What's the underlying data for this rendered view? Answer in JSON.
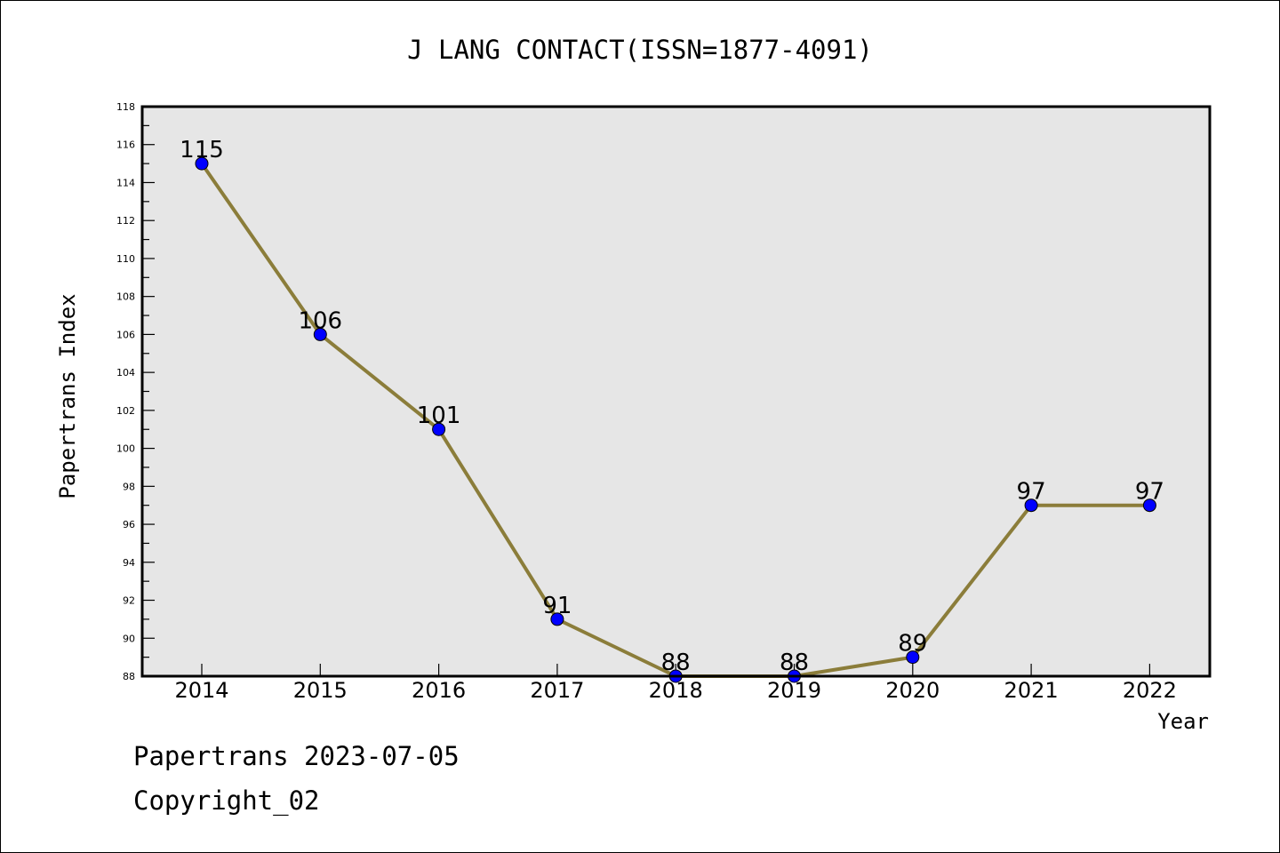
{
  "chart_data": {
    "type": "line",
    "title": "J LANG CONTACT(ISSN=1877-4091)",
    "xlabel": "Year",
    "ylabel": "Papertrans Index",
    "x": [
      "2014",
      "2015",
      "2016",
      "2017",
      "2018",
      "2019",
      "2020",
      "2021",
      "2022"
    ],
    "values": [
      115,
      106,
      101,
      91,
      88,
      88,
      89,
      97,
      97
    ],
    "data_labels": [
      "115",
      "106",
      "101",
      "91",
      "88",
      "88",
      "89",
      "97",
      "97"
    ],
    "ylim": [
      88,
      118
    ],
    "y_ticks": [
      "88",
      "90",
      "92",
      "94",
      "96",
      "98",
      "100",
      "102",
      "104",
      "106",
      "108",
      "110",
      "112",
      "114",
      "116",
      "118"
    ],
    "grid": false,
    "legend": "none",
    "colors": {
      "line": "#8B7D3A",
      "marker": "#0000FF",
      "plot_background": "#E6E6E6",
      "axes": "#000000"
    }
  },
  "footer": {
    "line1": "Papertrans 2023-07-05",
    "line2": "Copyright_02"
  }
}
